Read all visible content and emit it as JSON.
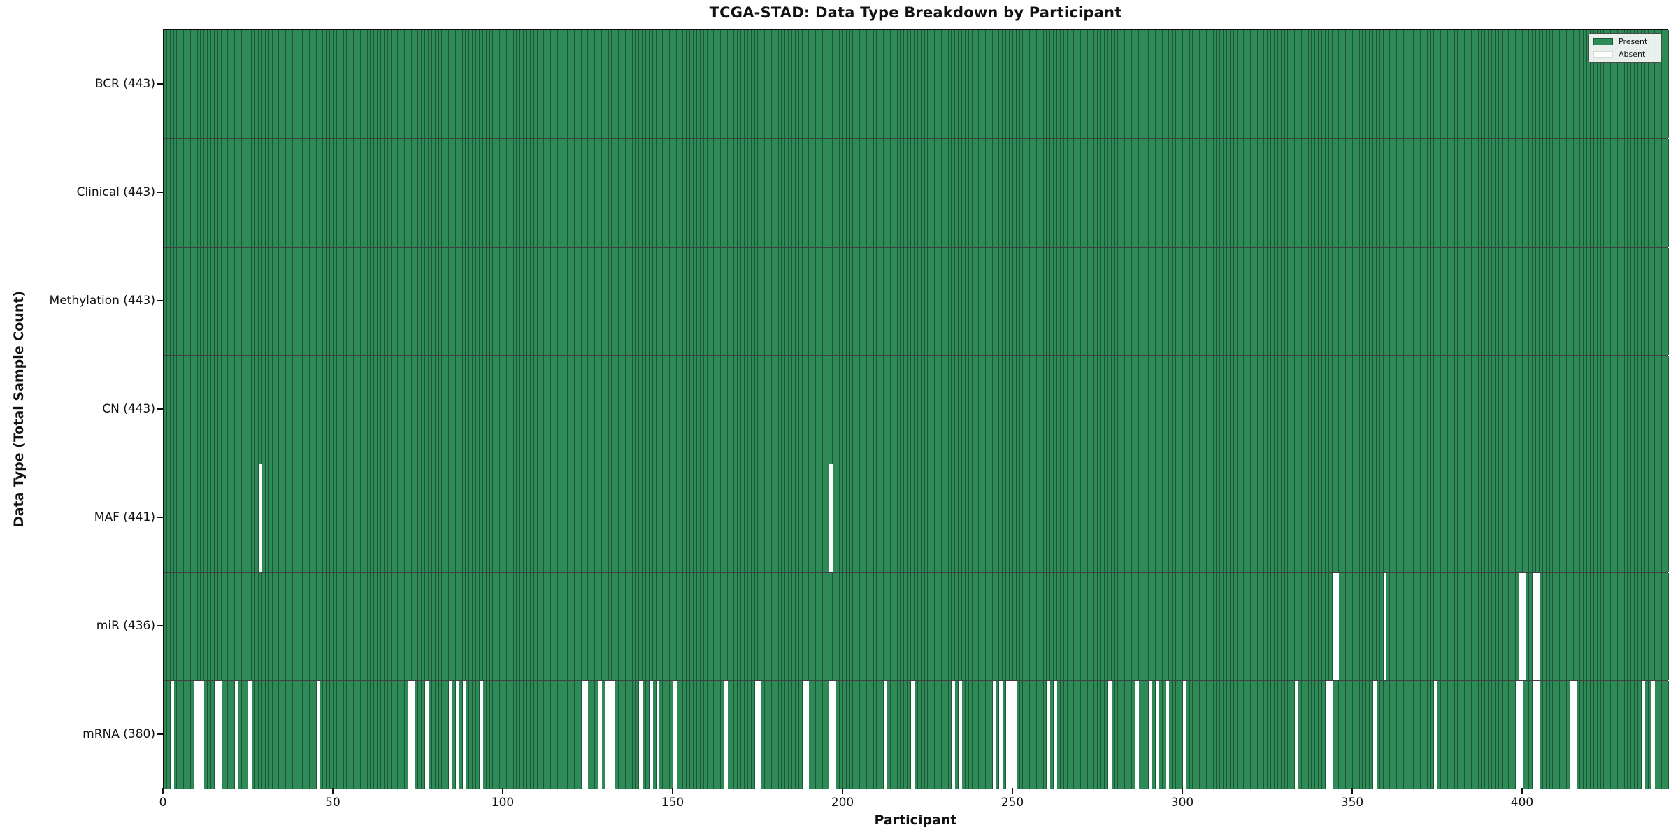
{
  "title": "TCGA-STAD: Data Type Breakdown by Participant",
  "x_axis_label": "Participant",
  "y_axis_label": "Data Type (Total Sample Count)",
  "legend": {
    "present_label": "Present",
    "absent_label": "Absent"
  },
  "colors": {
    "present": "#2e8b57",
    "absent": "#ffffff",
    "cell_edge": "rgba(0,0,0,0.38)",
    "row_separator": "rgba(0,0,0,0.75)",
    "spine": "#0a0a0a",
    "legend_background": "rgba(250,250,248,0.92)"
  },
  "chart_data": {
    "type": "heatmap",
    "title": "TCGA-STAD: Data Type Breakdown by Participant",
    "xlabel": "Participant",
    "ylabel": "Data Type (Total Sample Count)",
    "legend_entries": [
      "Present",
      "Absent"
    ],
    "legend_position": "upper right",
    "grid": false,
    "n_participants": 443,
    "xlim": [
      0,
      443
    ],
    "x_ticks": [
      0,
      50,
      100,
      150,
      200,
      250,
      300,
      350,
      400
    ],
    "value_encoding": {
      "present": 1,
      "absent": 0
    },
    "rows": [
      {
        "label": "BCR (443)",
        "data_type": "BCR",
        "present_count": 443,
        "absent_participants": []
      },
      {
        "label": "Clinical (443)",
        "data_type": "Clinical",
        "present_count": 443,
        "absent_participants": []
      },
      {
        "label": "Methylation (443)",
        "data_type": "Methylation",
        "present_count": 443,
        "absent_participants": []
      },
      {
        "label": "CN (443)",
        "data_type": "CN",
        "present_count": 443,
        "absent_participants": []
      },
      {
        "label": "MAF (441)",
        "data_type": "MAF",
        "present_count": 441,
        "absent_participants": [
          28,
          196
        ]
      },
      {
        "label": "miR (436)",
        "data_type": "miR",
        "present_count": 436,
        "absent_participants": [
          344,
          345,
          359,
          399,
          400,
          403,
          404
        ]
      },
      {
        "label": "mRNA (380)",
        "data_type": "mRNA",
        "present_count": 380,
        "absent_participants": [
          2,
          9,
          10,
          11,
          15,
          16,
          21,
          25,
          45,
          72,
          73,
          77,
          84,
          86,
          88,
          93,
          123,
          124,
          128,
          130,
          131,
          132,
          140,
          143,
          145,
          150,
          165,
          174,
          175,
          188,
          189,
          196,
          197,
          212,
          220,
          232,
          234,
          244,
          246,
          248,
          249,
          250,
          260,
          262,
          278,
          286,
          290,
          292,
          295,
          300,
          333,
          342,
          343,
          356,
          374,
          398,
          399,
          403,
          404,
          414,
          415,
          435,
          438
        ]
      }
    ]
  }
}
